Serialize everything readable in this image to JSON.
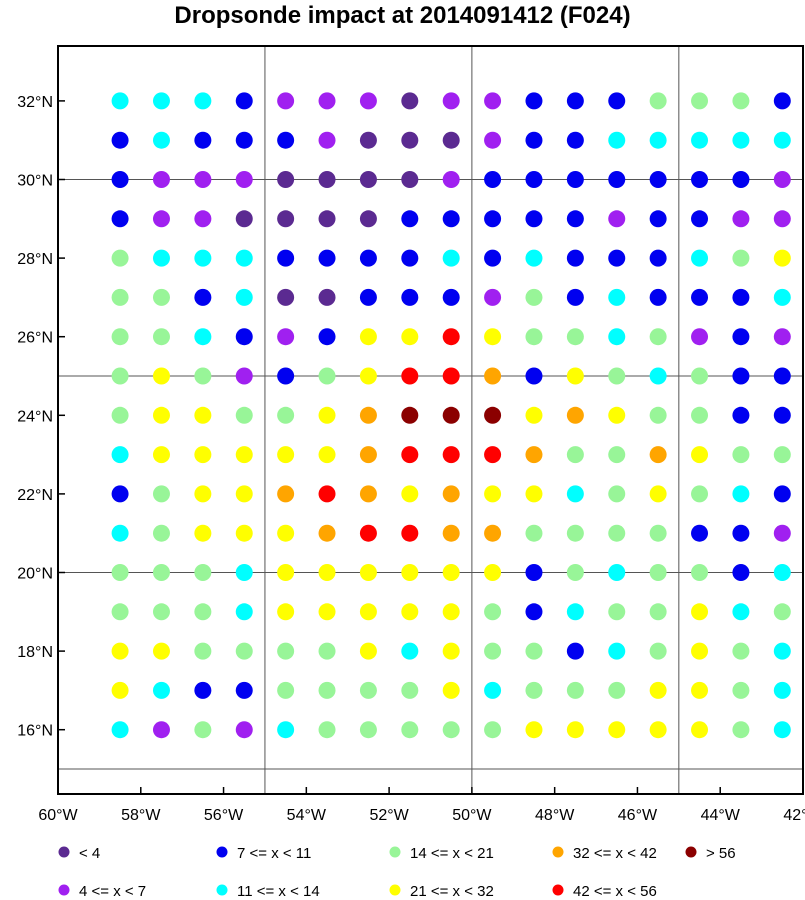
{
  "chart_data": {
    "type": "scatter",
    "title": "Dropsonde impact at 2014091412 (F024)",
    "xlabel": "",
    "ylabel": "",
    "xlim": [
      -60,
      -42
    ],
    "ylim": [
      15,
      33
    ],
    "x_ticks": [
      {
        "value": -60,
        "label": "60°W"
      },
      {
        "value": -58,
        "label": "58°W"
      },
      {
        "value": -56,
        "label": "56°W"
      },
      {
        "value": -54,
        "label": "54°W"
      },
      {
        "value": -52,
        "label": "52°W"
      },
      {
        "value": -50,
        "label": "50°W"
      },
      {
        "value": -48,
        "label": "48°W"
      },
      {
        "value": -46,
        "label": "46°W"
      },
      {
        "value": -44,
        "label": "44°W"
      },
      {
        "value": -42,
        "label": "42°W"
      }
    ],
    "y_ticks": [
      {
        "value": 16,
        "label": "16°N"
      },
      {
        "value": 18,
        "label": "18°N"
      },
      {
        "value": 20,
        "label": "20°N"
      },
      {
        "value": 22,
        "label": "22°N"
      },
      {
        "value": 24,
        "label": "24°N"
      },
      {
        "value": 26,
        "label": "26°N"
      },
      {
        "value": 28,
        "label": "28°N"
      },
      {
        "value": 30,
        "label": "30°N"
      },
      {
        "value": 32,
        "label": "32°N"
      }
    ],
    "grid_lines": {
      "lon": [
        -55,
        -50,
        -45
      ],
      "lat": [
        15,
        20,
        25,
        30
      ]
    },
    "grid": true,
    "legend_position": "bottom",
    "categories": [
      {
        "code": "A",
        "label": "<  4",
        "color": "#5b2a91"
      },
      {
        "code": "B",
        "label": "7 <= x < 11",
        "color": "#0000f0"
      },
      {
        "code": "C",
        "label": "14 <= x < 21",
        "color": "#98f598"
      },
      {
        "code": "D",
        "label": "32 <= x < 42",
        "color": "#ffa500"
      },
      {
        "code": "E",
        "label": "> 56",
        "color": "#8b0000"
      },
      {
        "code": "F",
        "label": "4 <= x <  7",
        "color": "#a020f0"
      },
      {
        "code": "G",
        "label": "11 <= x < 14",
        "color": "#00ffff"
      },
      {
        "code": "H",
        "label": "21 <= x < 32",
        "color": "#ffff00"
      },
      {
        "code": "I",
        "label": "42 <= x < 56",
        "color": "#ff0000"
      }
    ],
    "x_points": [
      -58.5,
      -57.5,
      -56.5,
      -55.5,
      -54.5,
      -53.5,
      -52.5,
      -51.5,
      -50.5,
      -49.5,
      -48.5,
      -47.5,
      -46.5,
      -45.5,
      -44.5,
      -43.5,
      -42.5
    ],
    "y_rows": [
      32,
      31,
      30,
      29,
      28,
      27,
      26,
      25,
      24,
      23,
      22,
      21,
      20,
      19,
      18,
      17,
      16
    ],
    "grid_values": [
      "GGGBFFFAFFBBBCCCB",
      "BGBBBFAAAFBBGGGGG",
      "BFFFAAAAFBBBBBBBF",
      "BFFAAAABBBBBFBBFF",
      "CGGGBBBBGBGBBBGCH",
      "CCBGAABBBFCBGBBBG",
      "CCGBFBHHIHCCGCFBF",
      "CHCFBCHIIDBHCGCBB",
      "CHHCCHDEEEHDHCCBB",
      "GHHHHHDIIIDCCDHCC",
      "BCHHDIDHDHHGCHCGB",
      "GCHHHDIIDDCCCCBBF",
      "CCCGHHHHHHBCGCCBG",
      "CCCGHHHHHCBGCCHGC",
      "HHCCCCHGHCCBGCHCG",
      "HGBBCCCCHGCCCHHCG",
      "GFCFGCCCCCHHHHHCG"
    ]
  }
}
